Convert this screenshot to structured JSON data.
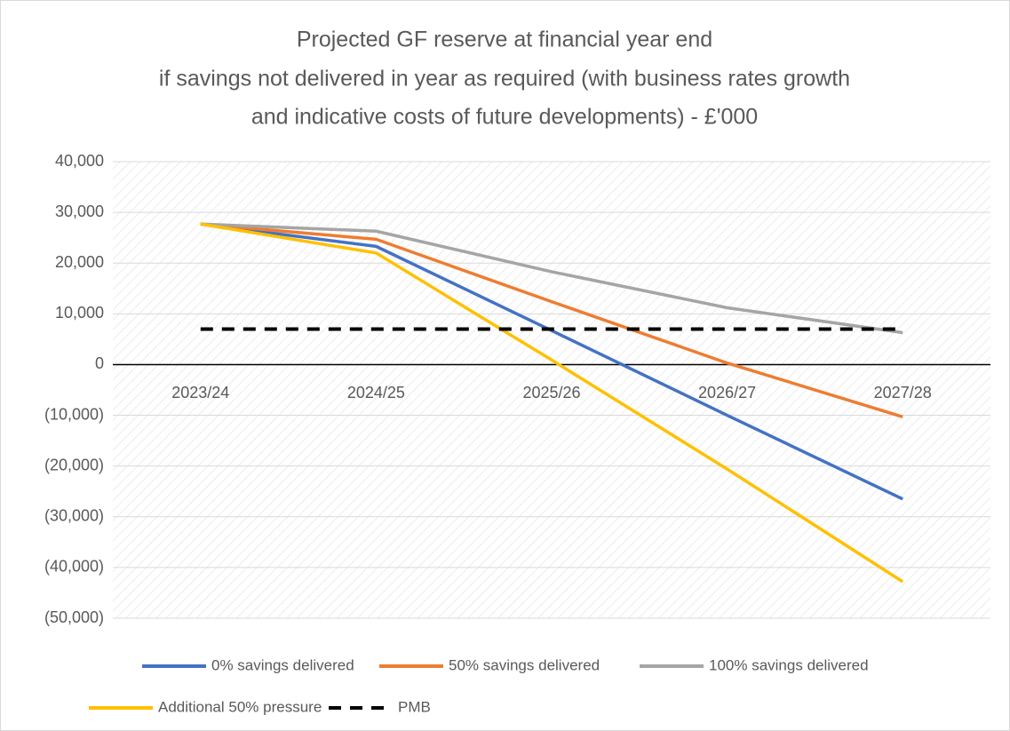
{
  "chart_data": {
    "type": "line",
    "title": [
      "Projected GF reserve at financial year end",
      "if savings not delivered in year as required (with business rates growth",
      "and indicative costs of future developments) - £'000"
    ],
    "categories": [
      "2023/24",
      "2024/25",
      "2025/26",
      "2026/27",
      "2027/28"
    ],
    "series": [
      {
        "name": "0% savings delivered",
        "color": "#4472c4",
        "dash": false,
        "values": [
          27700,
          23300,
          6700,
          -10000,
          -26500
        ]
      },
      {
        "name": "50% savings delivered",
        "color": "#ed7d31",
        "dash": false,
        "values": [
          27700,
          24700,
          12400,
          300,
          -10300
        ]
      },
      {
        "name": "100% savings delivered",
        "color": "#a5a5a5",
        "dash": false,
        "values": [
          27700,
          26300,
          18300,
          11200,
          6300
        ]
      },
      {
        "name": "Additional 50% pressure",
        "color": "#ffc000",
        "dash": false,
        "values": [
          27700,
          22000,
          900,
          -20600,
          -42800
        ]
      },
      {
        "name": "PMB",
        "color": "#000000",
        "dash": true,
        "values": [
          7000,
          7000,
          7000,
          7000,
          7000
        ]
      }
    ],
    "ylim": [
      -50000,
      40000
    ],
    "yticks": [
      {
        "value": -50000,
        "label": "(50,000)"
      },
      {
        "value": -40000,
        "label": "(40,000)"
      },
      {
        "value": -30000,
        "label": "(30,000)"
      },
      {
        "value": -20000,
        "label": "(20,000)"
      },
      {
        "value": -10000,
        "label": "(10,000)"
      },
      0,
      {
        "value": 10000,
        "label": "10,000"
      },
      {
        "value": 20000,
        "label": "20,000"
      },
      {
        "value": 30000,
        "label": "30,000"
      },
      {
        "value": 40000,
        "label": "40,000"
      }
    ],
    "grid": true
  }
}
